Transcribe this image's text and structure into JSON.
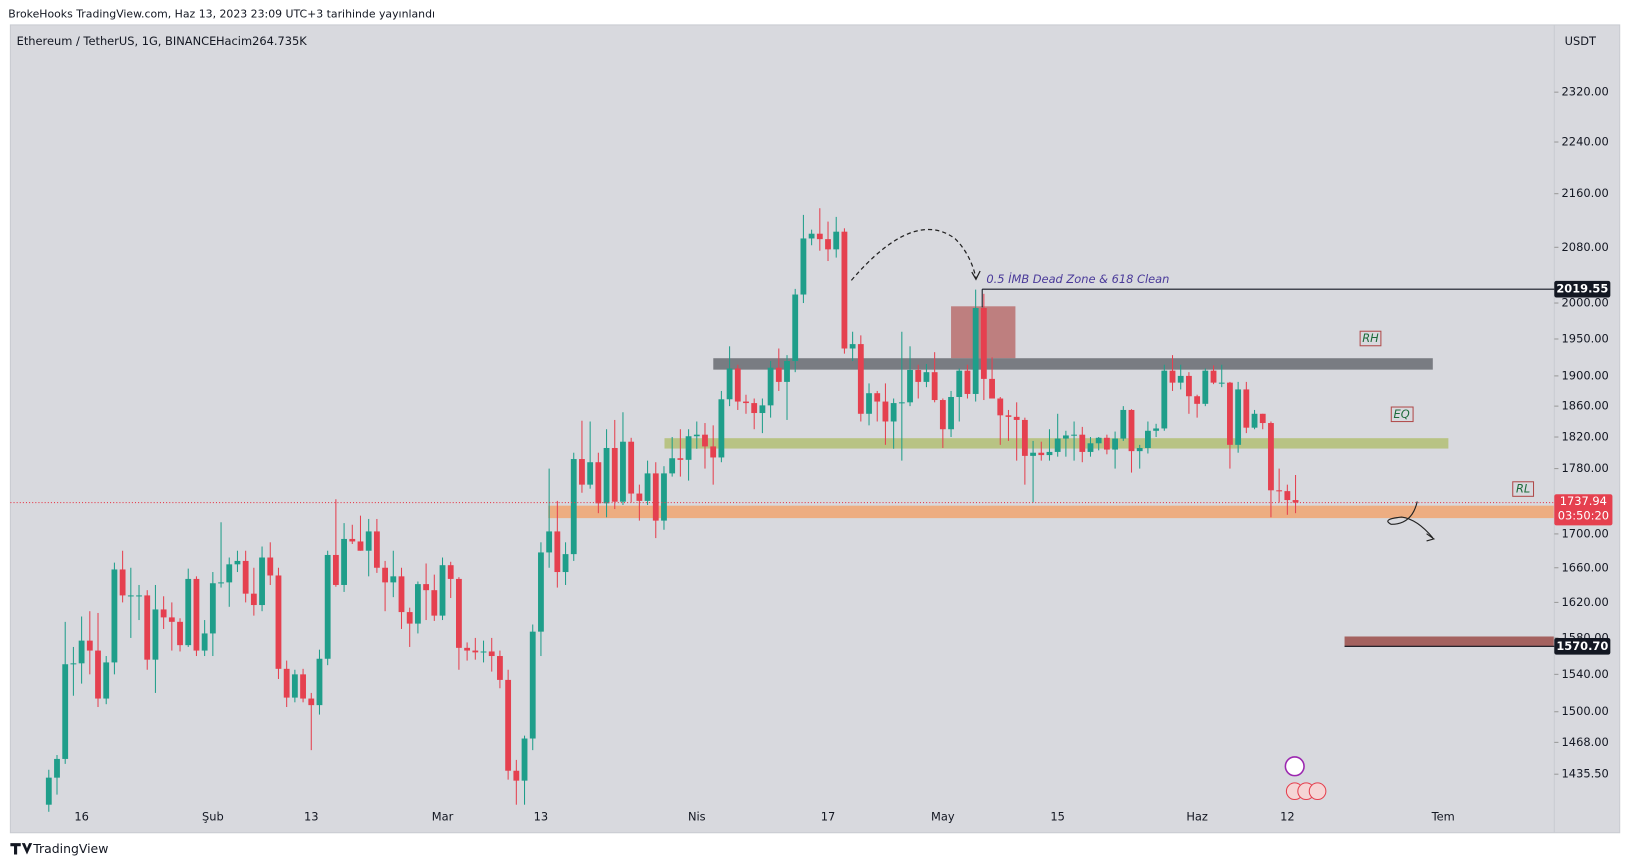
{
  "header": "BrokeHooks TradingView.com, Haz 13, 2023 23:09 UTC+3 tarihinde yayınlandı",
  "footer": "TradingView",
  "chart_data": {
    "type": "candlestick",
    "title": "Ethereum / TetherUS, 1G, BINANCE",
    "volume": "Hacim264.735K",
    "y_unit": "USDT",
    "up_color": "#1f9e8a",
    "down_color": "#e5404f",
    "log_scale": true,
    "grid": false,
    "ylim": [
      1405,
      2436
    ],
    "yticks": [
      {
        "value": 2320,
        "label": "2320.00"
      },
      {
        "value": 2240,
        "label": "2240.00"
      },
      {
        "value": 2160,
        "label": "2160.00"
      },
      {
        "value": 2080,
        "label": "2080.00"
      },
      {
        "value": 2000,
        "label": "2000.00"
      },
      {
        "value": 1950,
        "label": "1950.00"
      },
      {
        "value": 1900,
        "label": "1900.00"
      },
      {
        "value": 1860,
        "label": "1860.00"
      },
      {
        "value": 1820,
        "label": "1820.00"
      },
      {
        "value": 1780,
        "label": "1780.00"
      },
      {
        "value": 1700,
        "label": "1700.00"
      },
      {
        "value": 1660,
        "label": "1660.00"
      },
      {
        "value": 1620,
        "label": "1620.00"
      },
      {
        "value": 1580,
        "label": "1580.00"
      },
      {
        "value": 1540,
        "label": "1540.00"
      },
      {
        "value": 1500,
        "label": "1500.00"
      },
      {
        "value": 1468,
        "label": "1468.00"
      },
      {
        "value": 1435.5,
        "label": "1435.50"
      }
    ],
    "categories": [
      null,
      null,
      null,
      null,
      "16",
      null,
      null,
      null,
      null,
      null,
      null,
      null,
      null,
      null,
      null,
      null,
      null,
      null,
      null,
      null,
      "Şub",
      null,
      null,
      null,
      null,
      null,
      null,
      null,
      null,
      null,
      null,
      null,
      "13",
      null,
      null,
      null,
      null,
      null,
      null,
      null,
      null,
      null,
      null,
      null,
      null,
      null,
      null,
      null,
      "Mar",
      null,
      null,
      null,
      null,
      null,
      null,
      null,
      null,
      null,
      null,
      null,
      "13",
      null,
      null,
      null,
      null,
      null,
      null,
      null,
      null,
      null,
      null,
      null,
      null,
      null,
      null,
      null,
      null,
      null,
      null,
      "Nis",
      null,
      null,
      null,
      null,
      null,
      null,
      null,
      null,
      null,
      null,
      null,
      null,
      null,
      null,
      null,
      "17",
      null,
      null,
      null,
      null,
      null,
      null,
      null,
      null,
      null,
      null,
      null,
      null,
      null,
      "May",
      null,
      null,
      null,
      null,
      null,
      null,
      null,
      null,
      null,
      null,
      null,
      null,
      null,
      "15",
      null,
      null,
      null,
      null,
      null,
      null,
      null,
      null,
      null,
      null,
      null,
      null,
      null,
      null,
      null,
      null,
      "Haz",
      null,
      null,
      null,
      null,
      null,
      null,
      null,
      null,
      null,
      null,
      "12",
      null,
      null,
      null,
      null,
      null,
      null,
      null,
      null,
      null,
      null,
      null,
      null,
      null,
      null,
      null,
      null,
      null,
      null,
      "Tem"
    ],
    "open": [
      1405,
      1432,
      1451,
      1551,
      1552,
      1577,
      1566,
      1514,
      1553,
      1658,
      1628,
      1628,
      1628,
      1556,
      1612,
      1603,
      1598,
      1572,
      1647,
      1566,
      1585,
      1642,
      1643,
      1664,
      1668,
      1630,
      1617,
      1672,
      1651,
      1546,
      1515,
      1540,
      1514,
      1507,
      1557,
      1675,
      1640,
      1694,
      1691,
      1680,
      1703,
      1660,
      1643,
      1650,
      1609,
      1596,
      1641,
      1634,
      1605,
      1663,
      1647,
      1569,
      1566,
      1564,
      1565,
      1560,
      1534,
      1439,
      1429,
      1472,
      1587,
      1678,
      1703,
      1655,
      1676,
      1792,
      1760,
      1788,
      1737,
      1806,
      1739,
      1814,
      1749,
      1740,
      1774,
      1716,
      1774,
      1793,
      1791,
      1821,
      1823,
      1808,
      1794,
      1869,
      1910,
      1866,
      1864,
      1851,
      1861,
      1911,
      1892,
      1920,
      2012,
      2093,
      2100,
      2092,
      2077,
      2103,
      1937,
      1943,
      1850,
      1877,
      1866,
      1840,
      1864,
      1865,
      1908,
      1892,
      1905,
      1868,
      1830,
      1872,
      1907,
      1876,
      1993,
      1896,
      1870,
      1848,
      1846,
      1842,
      1796,
      1800,
      1797,
      1801,
      1818,
      1822,
      1823,
      1801,
      1812,
      1819,
      1804,
      1818,
      1855,
      1802,
      1806,
      1828,
      1831,
      1907,
      1891,
      1900,
      1873,
      1863,
      1907,
      1891,
      1891,
      1810,
      1882,
      1832,
      1850,
      1838,
      1753,
      1752,
      1741,
      null,
      null,
      null,
      null,
      null,
      null,
      null,
      null,
      null,
      null,
      null,
      null,
      null,
      null,
      null,
      null,
      null,
      null
    ],
    "high": [
      1440,
      1455,
      1598,
      1570,
      1604,
      1610,
      1608,
      1560,
      1666,
      1680,
      1660,
      1640,
      1634,
      1640,
      1627,
      1620,
      1602,
      1659,
      1650,
      1600,
      1655,
      1714,
      1672,
      1680,
      1680,
      1660,
      1685,
      1690,
      1660,
      1555,
      1545,
      1546,
      1520,
      1567,
      1680,
      1742,
      1713,
      1711,
      1722,
      1718,
      1718,
      1668,
      1680,
      1660,
      1614,
      1644,
      1665,
      1652,
      1672,
      1667,
      1649,
      1575,
      1580,
      1577,
      1580,
      1566,
      1545,
      1450,
      1475,
      1595,
      1690,
      1780,
      1740,
      1690,
      1800,
      1841,
      1840,
      1800,
      1830,
      1842,
      1852,
      1819,
      1760,
      1790,
      1788,
      1783,
      1820,
      1830,
      1830,
      1840,
      1838,
      1835,
      1880,
      1940,
      1915,
      1875,
      1870,
      1870,
      1920,
      1937,
      1928,
      2020,
      2128,
      2106,
      2138,
      2118,
      2125,
      2108,
      1960,
      1955,
      1890,
      1880,
      1890,
      1870,
      1960,
      1940,
      1915,
      1916,
      1932,
      1870,
      1880,
      1910,
      1915,
      2019,
      2013,
      1925,
      1872,
      1855,
      1865,
      1845,
      1815,
      1814,
      1830,
      1850,
      1828,
      1840,
      1833,
      1820,
      1820,
      1823,
      1827,
      1860,
      1856,
      1810,
      1840,
      1837,
      1915,
      1928,
      1915,
      1905,
      1875,
      1910,
      1914,
      1915,
      1892,
      1892,
      1892,
      1855,
      1850,
      1840,
      1780,
      1760,
      1772,
      null,
      null,
      null,
      null,
      null,
      null,
      null,
      null,
      null,
      null,
      null,
      null,
      null,
      null,
      null,
      null,
      null,
      null
    ],
    "low": [
      1398,
      1415,
      1446,
      1517,
      1530,
      1540,
      1505,
      1508,
      1540,
      1620,
      1580,
      1600,
      1545,
      1520,
      1590,
      1566,
      1565,
      1570,
      1560,
      1560,
      1560,
      1637,
      1615,
      1655,
      1620,
      1605,
      1610,
      1640,
      1535,
      1505,
      1510,
      1510,
      1460,
      1497,
      1550,
      1638,
      1632,
      1688,
      1680,
      1650,
      1654,
      1610,
      1626,
      1590,
      1570,
      1585,
      1600,
      1599,
      1600,
      1625,
      1545,
      1555,
      1556,
      1553,
      1543,
      1525,
      1430,
      1405,
      1405,
      1460,
      1560,
      1660,
      1637,
      1640,
      1668,
      1750,
      1755,
      1725,
      1720,
      1730,
      1735,
      1738,
      1716,
      1735,
      1695,
      1705,
      1770,
      1770,
      1765,
      1805,
      1780,
      1760,
      1788,
      1860,
      1855,
      1850,
      1830,
      1825,
      1845,
      1880,
      1842,
      1905,
      2000,
      2083,
      2075,
      2060,
      2065,
      1930,
      1920,
      1840,
      1835,
      1840,
      1810,
      1805,
      1790,
      1860,
      1870,
      1885,
      1865,
      1806,
      1820,
      1840,
      1870,
      1866,
      1868,
      1870,
      1810,
      1815,
      1790,
      1760,
      1738,
      1790,
      1790,
      1795,
      1795,
      1790,
      1788,
      1795,
      1803,
      1798,
      1780,
      1815,
      1775,
      1780,
      1799,
      1820,
      1828,
      1880,
      1882,
      1850,
      1845,
      1860,
      1889,
      1885,
      1780,
      1800,
      1825,
      1830,
      1830,
      1720,
      1738,
      1723,
      1725,
      null,
      null,
      null,
      null,
      null,
      null,
      null,
      null,
      null,
      null,
      null,
      null,
      null,
      null,
      null,
      null,
      null,
      null
    ],
    "close": [
      1432,
      1451,
      1551,
      1552,
      1577,
      1566,
      1514,
      1553,
      1658,
      1628,
      1628,
      1628,
      1556,
      1612,
      1603,
      1598,
      1572,
      1647,
      1566,
      1585,
      1642,
      1643,
      1664,
      1668,
      1630,
      1617,
      1672,
      1651,
      1546,
      1515,
      1540,
      1514,
      1507,
      1557,
      1675,
      1640,
      1694,
      1691,
      1680,
      1703,
      1660,
      1643,
      1650,
      1609,
      1596,
      1641,
      1634,
      1605,
      1663,
      1647,
      1569,
      1566,
      1564,
      1565,
      1560,
      1534,
      1439,
      1429,
      1472,
      1587,
      1678,
      1703,
      1655,
      1676,
      1792,
      1760,
      1788,
      1737,
      1806,
      1739,
      1814,
      1749,
      1740,
      1774,
      1716,
      1774,
      1793,
      1791,
      1821,
      1823,
      1808,
      1794,
      1869,
      1910,
      1866,
      1864,
      1851,
      1861,
      1911,
      1892,
      1920,
      2012,
      2093,
      2100,
      2092,
      2077,
      2103,
      1937,
      1943,
      1850,
      1877,
      1866,
      1840,
      1864,
      1865,
      1908,
      1892,
      1905,
      1868,
      1830,
      1872,
      1907,
      1876,
      1993,
      1896,
      1870,
      1848,
      1846,
      1842,
      1796,
      1800,
      1797,
      1801,
      1818,
      1822,
      1823,
      1801,
      1812,
      1819,
      1804,
      1818,
      1855,
      1802,
      1806,
      1828,
      1831,
      1907,
      1891,
      1900,
      1873,
      1863,
      1907,
      1891,
      1891,
      1810,
      1882,
      1832,
      1850,
      1838,
      1753,
      1752,
      1741,
      1738,
      null,
      null,
      null,
      null,
      null,
      null,
      null,
      null,
      null,
      null,
      null,
      null,
      null,
      null,
      null,
      null,
      null,
      null
    ],
    "last_price": 1737.94,
    "countdown": "03:50:20",
    "levels": [
      2019.55,
      {
        "value": 1570.7,
        "label": "1570.70"
      }
    ],
    "annotations": {
      "note": "0.5 İMB Dead Zone & 618 Clean",
      "rh": "RH",
      "eq": "EQ",
      "rl": "RL"
    }
  }
}
